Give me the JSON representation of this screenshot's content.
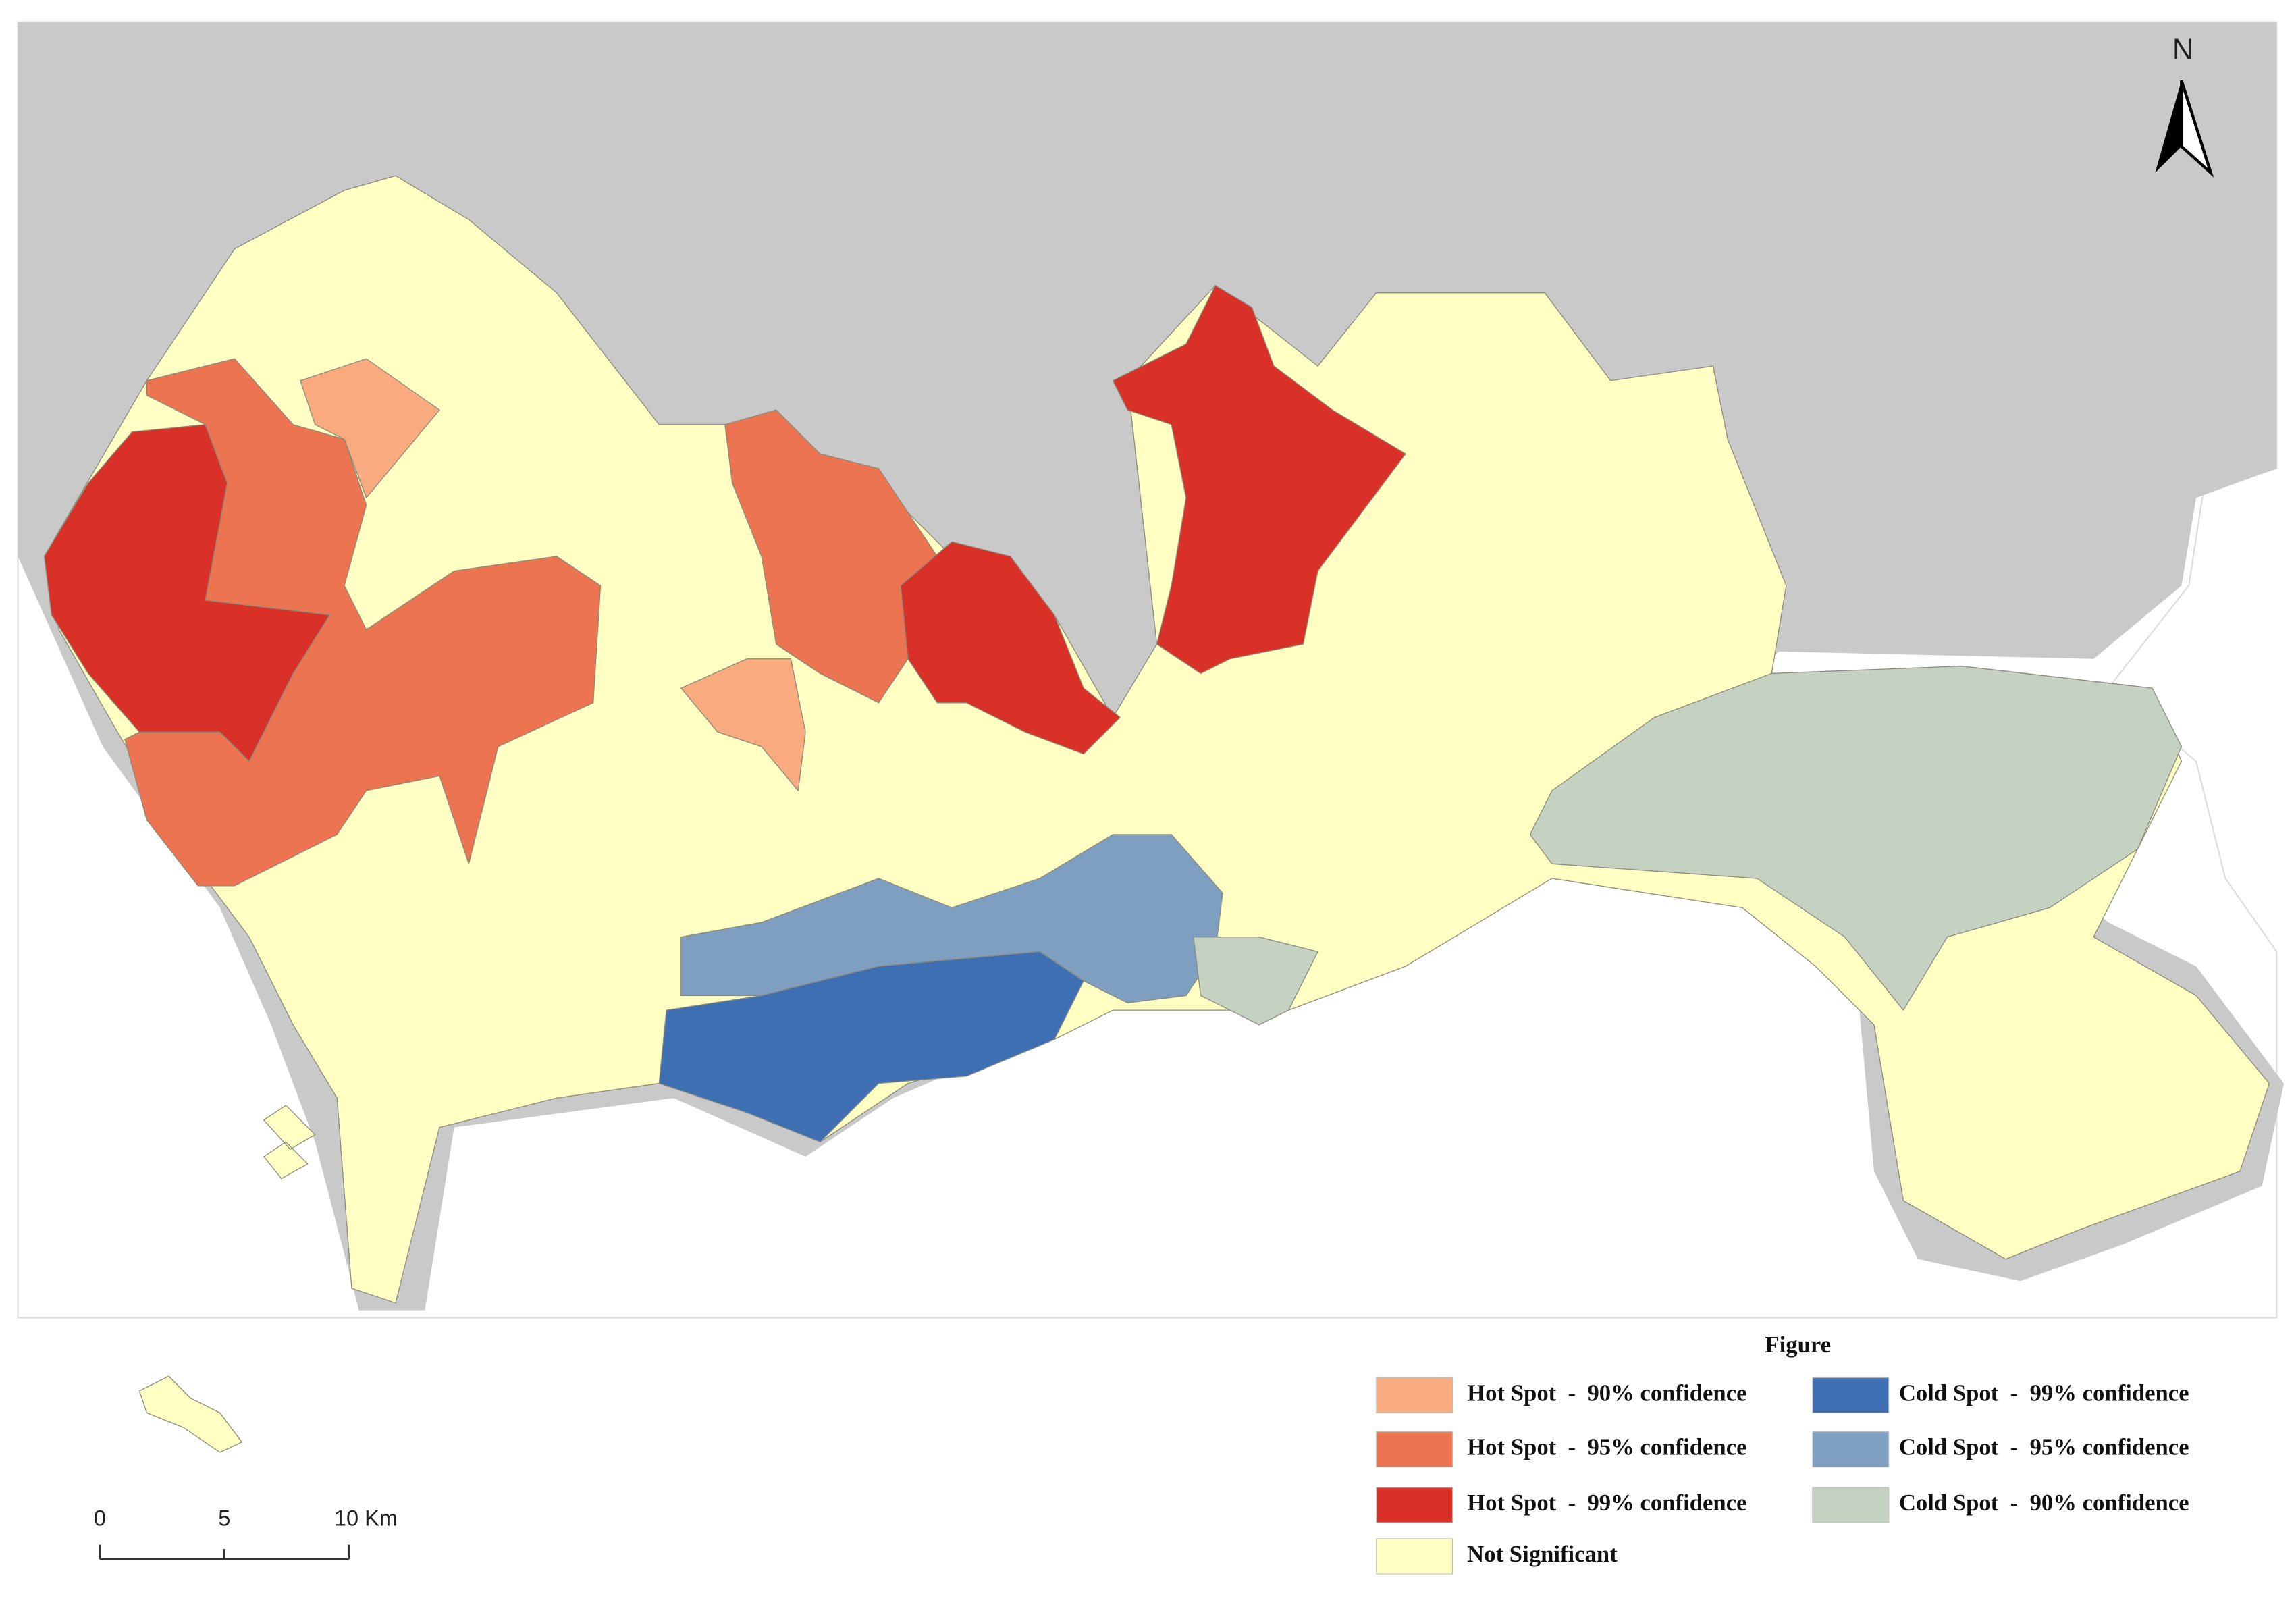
{
  "north_arrow": {
    "label": "N"
  },
  "scale_bar": {
    "labels": [
      "0",
      "5",
      "10 Km"
    ]
  },
  "legend": {
    "title": "Figure",
    "items": [
      {
        "label": "Hot Spot  -  90% confidence",
        "color": "#f9ab7f"
      },
      {
        "label": "Hot Spot  -  95% confidence",
        "color": "#ec7450"
      },
      {
        "label": "Hot Spot  -  99% confidence",
        "color": "#d93128"
      },
      {
        "label": "Not Significant",
        "color": "#ffffc3"
      },
      {
        "label": "Cold Spot  -  99% confidence",
        "color": "#3e6fb3"
      },
      {
        "label": "Cold Spot  -  95% confidence",
        "color": "#7f9fc0"
      },
      {
        "label": "Cold Spot  -  90% confidence",
        "color": "#c5d2c2"
      }
    ]
  }
}
